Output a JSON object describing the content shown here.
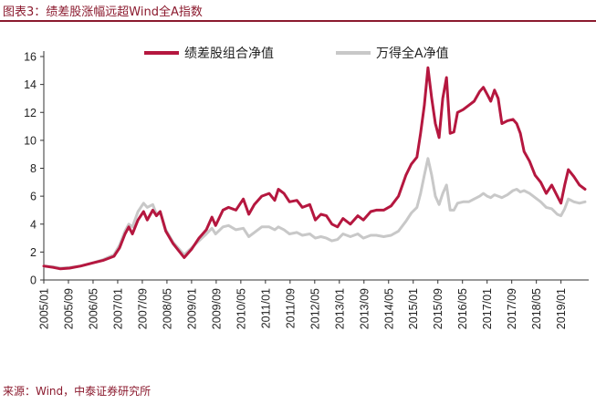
{
  "figure": {
    "title": "图表3：绩差股涨幅远超Wind全A指数",
    "source": "来源：Wind，中泰证券研究所"
  },
  "chart_data": {
    "type": "line",
    "title": "",
    "xlabel": "",
    "ylabel": "",
    "ylim": [
      0,
      16
    ],
    "yticks": [
      0,
      2,
      4,
      6,
      8,
      10,
      12,
      14,
      16
    ],
    "xlim": [
      2005.0,
      2019.75
    ],
    "xticks": [
      "2005/01",
      "2005/09",
      "2006/05",
      "2007/01",
      "2007/09",
      "2008/05",
      "2009/01",
      "2009/09",
      "2010/05",
      "2011/01",
      "2011/09",
      "2012/05",
      "2013/01",
      "2013/09",
      "2014/05",
      "2015/01",
      "2015/09",
      "2016/05",
      "2017/01",
      "2017/09",
      "2018/05",
      "2019/01"
    ],
    "grid": false,
    "legend_position": "top",
    "series": [
      {
        "name": "绩差股组合净值",
        "color": "#b5173f",
        "points": [
          [
            2005.0,
            1.0
          ],
          [
            2005.25,
            0.9
          ],
          [
            2005.45,
            0.8
          ],
          [
            2005.7,
            0.85
          ],
          [
            2006.0,
            1.0
          ],
          [
            2006.3,
            1.2
          ],
          [
            2006.6,
            1.4
          ],
          [
            2006.9,
            1.7
          ],
          [
            2007.05,
            2.3
          ],
          [
            2007.2,
            3.3
          ],
          [
            2007.3,
            3.8
          ],
          [
            2007.4,
            3.3
          ],
          [
            2007.55,
            4.3
          ],
          [
            2007.7,
            4.9
          ],
          [
            2007.8,
            4.3
          ],
          [
            2007.95,
            5.0
          ],
          [
            2008.05,
            4.6
          ],
          [
            2008.15,
            4.9
          ],
          [
            2008.3,
            3.5
          ],
          [
            2008.5,
            2.6
          ],
          [
            2008.8,
            1.6
          ],
          [
            2009.0,
            2.2
          ],
          [
            2009.2,
            3.0
          ],
          [
            2009.4,
            3.6
          ],
          [
            2009.55,
            4.5
          ],
          [
            2009.65,
            3.9
          ],
          [
            2009.85,
            5.0
          ],
          [
            2010.0,
            5.2
          ],
          [
            2010.2,
            5.0
          ],
          [
            2010.4,
            5.8
          ],
          [
            2010.55,
            4.7
          ],
          [
            2010.7,
            5.4
          ],
          [
            2010.9,
            6.0
          ],
          [
            2011.1,
            6.2
          ],
          [
            2011.25,
            5.7
          ],
          [
            2011.35,
            6.5
          ],
          [
            2011.5,
            6.2
          ],
          [
            2011.65,
            5.6
          ],
          [
            2011.85,
            5.7
          ],
          [
            2012.0,
            5.2
          ],
          [
            2012.2,
            5.4
          ],
          [
            2012.35,
            4.3
          ],
          [
            2012.5,
            4.7
          ],
          [
            2012.65,
            4.6
          ],
          [
            2012.8,
            4.0
          ],
          [
            2012.95,
            3.8
          ],
          [
            2013.1,
            4.4
          ],
          [
            2013.3,
            4.0
          ],
          [
            2013.5,
            4.6
          ],
          [
            2013.65,
            4.3
          ],
          [
            2013.85,
            4.9
          ],
          [
            2014.0,
            5.0
          ],
          [
            2014.2,
            5.0
          ],
          [
            2014.4,
            5.3
          ],
          [
            2014.6,
            6.0
          ],
          [
            2014.8,
            7.5
          ],
          [
            2014.95,
            8.3
          ],
          [
            2015.1,
            8.8
          ],
          [
            2015.2,
            10.5
          ],
          [
            2015.3,
            12.5
          ],
          [
            2015.4,
            15.2
          ],
          [
            2015.5,
            13.0
          ],
          [
            2015.6,
            11.2
          ],
          [
            2015.7,
            10.2
          ],
          [
            2015.8,
            13.0
          ],
          [
            2015.9,
            14.5
          ],
          [
            2016.0,
            10.5
          ],
          [
            2016.1,
            10.6
          ],
          [
            2016.2,
            12.0
          ],
          [
            2016.35,
            12.2
          ],
          [
            2016.5,
            12.5
          ],
          [
            2016.65,
            12.8
          ],
          [
            2016.8,
            13.5
          ],
          [
            2016.9,
            13.8
          ],
          [
            2017.0,
            13.3
          ],
          [
            2017.1,
            12.8
          ],
          [
            2017.2,
            13.6
          ],
          [
            2017.3,
            13.0
          ],
          [
            2017.4,
            11.2
          ],
          [
            2017.55,
            11.4
          ],
          [
            2017.7,
            11.5
          ],
          [
            2017.8,
            11.2
          ],
          [
            2017.9,
            10.5
          ],
          [
            2018.0,
            9.2
          ],
          [
            2018.15,
            8.5
          ],
          [
            2018.3,
            7.5
          ],
          [
            2018.45,
            7.0
          ],
          [
            2018.6,
            6.2
          ],
          [
            2018.75,
            6.8
          ],
          [
            2018.9,
            6.0
          ],
          [
            2019.0,
            5.5
          ],
          [
            2019.1,
            6.8
          ],
          [
            2019.2,
            7.9
          ],
          [
            2019.35,
            7.4
          ],
          [
            2019.5,
            6.8
          ],
          [
            2019.65,
            6.5
          ]
        ]
      },
      {
        "name": "万得全A净值",
        "color": "#c8c8c8",
        "points": [
          [
            2005.0,
            1.0
          ],
          [
            2005.25,
            0.95
          ],
          [
            2005.45,
            0.85
          ],
          [
            2005.7,
            0.9
          ],
          [
            2006.0,
            1.0
          ],
          [
            2006.3,
            1.2
          ],
          [
            2006.6,
            1.45
          ],
          [
            2006.9,
            1.8
          ],
          [
            2007.05,
            2.5
          ],
          [
            2007.2,
            3.5
          ],
          [
            2007.3,
            4.0
          ],
          [
            2007.4,
            3.8
          ],
          [
            2007.55,
            4.9
          ],
          [
            2007.7,
            5.5
          ],
          [
            2007.8,
            5.2
          ],
          [
            2007.95,
            5.4
          ],
          [
            2008.05,
            4.7
          ],
          [
            2008.15,
            4.9
          ],
          [
            2008.3,
            3.6
          ],
          [
            2008.5,
            2.7
          ],
          [
            2008.8,
            1.8
          ],
          [
            2009.0,
            2.3
          ],
          [
            2009.2,
            2.8
          ],
          [
            2009.4,
            3.3
          ],
          [
            2009.55,
            3.7
          ],
          [
            2009.65,
            3.3
          ],
          [
            2009.85,
            3.8
          ],
          [
            2010.0,
            3.9
          ],
          [
            2010.2,
            3.6
          ],
          [
            2010.4,
            3.7
          ],
          [
            2010.55,
            3.1
          ],
          [
            2010.7,
            3.4
          ],
          [
            2010.9,
            3.8
          ],
          [
            2011.1,
            3.8
          ],
          [
            2011.25,
            3.6
          ],
          [
            2011.35,
            3.8
          ],
          [
            2011.5,
            3.6
          ],
          [
            2011.65,
            3.3
          ],
          [
            2011.85,
            3.4
          ],
          [
            2012.0,
            3.2
          ],
          [
            2012.2,
            3.3
          ],
          [
            2012.35,
            3.0
          ],
          [
            2012.5,
            3.1
          ],
          [
            2012.65,
            3.0
          ],
          [
            2012.8,
            2.8
          ],
          [
            2012.95,
            2.9
          ],
          [
            2013.1,
            3.3
          ],
          [
            2013.3,
            3.1
          ],
          [
            2013.5,
            3.3
          ],
          [
            2013.65,
            3.0
          ],
          [
            2013.85,
            3.2
          ],
          [
            2014.0,
            3.2
          ],
          [
            2014.2,
            3.1
          ],
          [
            2014.4,
            3.2
          ],
          [
            2014.6,
            3.5
          ],
          [
            2014.8,
            4.2
          ],
          [
            2014.95,
            4.8
          ],
          [
            2015.1,
            5.2
          ],
          [
            2015.2,
            6.2
          ],
          [
            2015.3,
            7.5
          ],
          [
            2015.4,
            8.7
          ],
          [
            2015.5,
            7.5
          ],
          [
            2015.6,
            6.0
          ],
          [
            2015.7,
            5.4
          ],
          [
            2015.8,
            6.2
          ],
          [
            2015.9,
            6.8
          ],
          [
            2016.0,
            5.0
          ],
          [
            2016.1,
            5.0
          ],
          [
            2016.2,
            5.5
          ],
          [
            2016.35,
            5.6
          ],
          [
            2016.5,
            5.6
          ],
          [
            2016.65,
            5.8
          ],
          [
            2016.8,
            6.0
          ],
          [
            2016.9,
            6.2
          ],
          [
            2017.0,
            6.0
          ],
          [
            2017.1,
            5.9
          ],
          [
            2017.2,
            6.1
          ],
          [
            2017.3,
            6.0
          ],
          [
            2017.4,
            5.9
          ],
          [
            2017.55,
            6.1
          ],
          [
            2017.7,
            6.4
          ],
          [
            2017.8,
            6.5
          ],
          [
            2017.9,
            6.3
          ],
          [
            2018.0,
            6.4
          ],
          [
            2018.15,
            6.2
          ],
          [
            2018.3,
            5.9
          ],
          [
            2018.45,
            5.6
          ],
          [
            2018.6,
            5.2
          ],
          [
            2018.75,
            5.1
          ],
          [
            2018.9,
            4.7
          ],
          [
            2019.0,
            4.6
          ],
          [
            2019.1,
            5.1
          ],
          [
            2019.2,
            5.8
          ],
          [
            2019.35,
            5.6
          ],
          [
            2019.5,
            5.5
          ],
          [
            2019.65,
            5.6
          ]
        ]
      }
    ]
  }
}
